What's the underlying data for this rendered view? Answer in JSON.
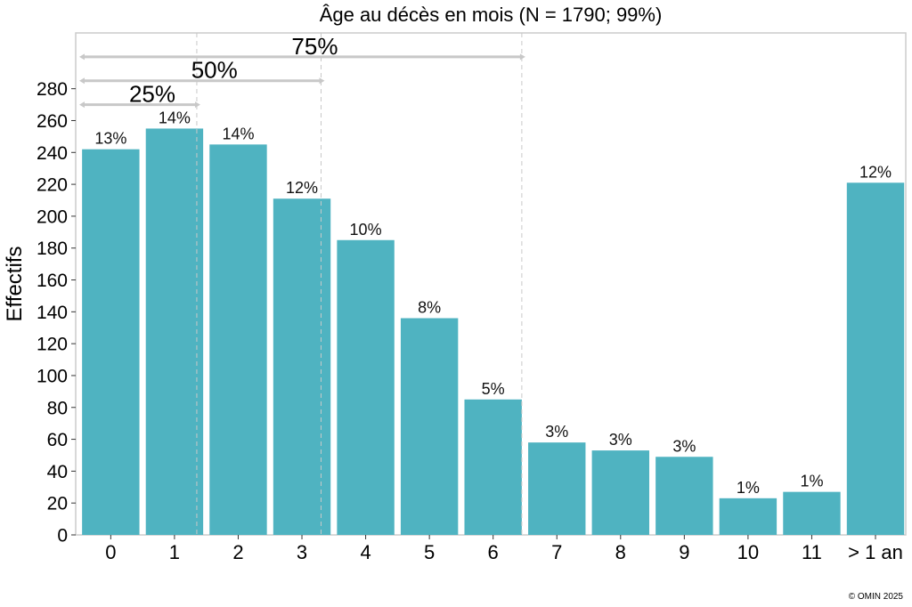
{
  "chart_data": {
    "type": "bar",
    "title": "Âge au décès en mois (N = 1790; 99%)",
    "xlabel": "",
    "ylabel": "Effectifs",
    "categories": [
      "0",
      "1",
      "2",
      "3",
      "4",
      "5",
      "6",
      "7",
      "8",
      "9",
      "10",
      "11",
      "> 1 an"
    ],
    "values": [
      242,
      255,
      245,
      211,
      185,
      136,
      85,
      58,
      53,
      49,
      23,
      27,
      221
    ],
    "data_labels": [
      "13%",
      "14%",
      "14%",
      "12%",
      "10%",
      "8%",
      "5%",
      "3%",
      "3%",
      "3%",
      "1%",
      "1%",
      "12%"
    ],
    "yticks": [
      0,
      20,
      40,
      60,
      80,
      100,
      120,
      140,
      160,
      180,
      200,
      220,
      240,
      260,
      280
    ],
    "ylim": [
      0,
      315
    ],
    "grid": false,
    "bar_color": "#4fb3c1",
    "quantiles": [
      {
        "label": "25%",
        "x": 1.35
      },
      {
        "label": "50%",
        "x": 3.3
      },
      {
        "label": "75%",
        "x": 6.45
      }
    ],
    "quantile_color": "#c8c8c8"
  },
  "copyright": "© OMIN 2025"
}
